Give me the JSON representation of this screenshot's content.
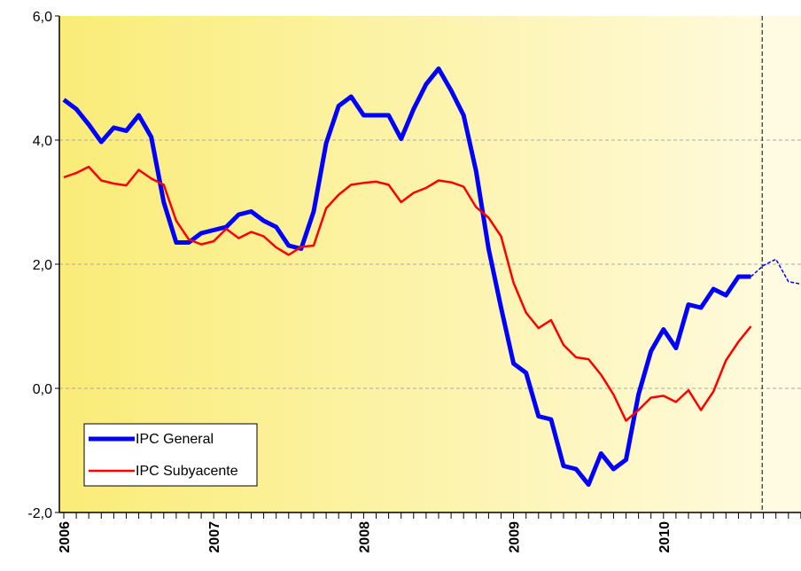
{
  "chart_data": {
    "type": "line",
    "categories": [
      "2006",
      null,
      null,
      null,
      null,
      null,
      null,
      null,
      null,
      null,
      null,
      null,
      "2007",
      null,
      null,
      null,
      null,
      null,
      null,
      null,
      null,
      null,
      null,
      null,
      "2008",
      null,
      null,
      null,
      null,
      null,
      null,
      null,
      null,
      null,
      null,
      null,
      "2009",
      null,
      null,
      null,
      null,
      null,
      null,
      null,
      null,
      null,
      null,
      null,
      "2010",
      null,
      null,
      null,
      null,
      null,
      null,
      null,
      null,
      null,
      null,
      null
    ],
    "series": [
      {
        "name": "IPC General",
        "color": "#0000ff",
        "width": 5,
        "values": [
          4.65,
          4.5,
          4.25,
          3.97,
          4.2,
          4.15,
          4.4,
          4.05,
          3.0,
          2.35,
          2.35,
          2.5,
          2.55,
          2.6,
          2.8,
          2.85,
          2.7,
          2.6,
          2.3,
          2.25,
          2.85,
          3.95,
          4.55,
          4.7,
          4.4,
          4.4,
          4.4,
          4.02,
          4.5,
          4.9,
          5.15,
          4.8,
          4.4,
          3.5,
          2.25,
          1.3,
          0.4,
          0.25,
          -0.45,
          -0.5,
          -1.25,
          -1.3,
          -1.55,
          -1.05,
          -1.3,
          -1.15,
          -0.1,
          0.6,
          0.95,
          0.65,
          1.35,
          1.3,
          1.6,
          1.5,
          1.8,
          1.8,
          null,
          null,
          null,
          null
        ]
      },
      {
        "name": "IPC Subyacente",
        "color": "#ff0000",
        "width": 2.5,
        "values": [
          3.4,
          3.47,
          3.57,
          3.35,
          3.3,
          3.27,
          3.52,
          3.38,
          3.28,
          2.7,
          2.4,
          2.32,
          2.37,
          2.57,
          2.42,
          2.52,
          2.45,
          2.27,
          2.15,
          2.28,
          2.3,
          2.9,
          3.12,
          3.28,
          3.31,
          3.33,
          3.28,
          3.0,
          3.15,
          3.23,
          3.35,
          3.32,
          3.25,
          2.92,
          2.75,
          2.45,
          1.7,
          1.22,
          0.97,
          1.1,
          0.7,
          0.5,
          0.47,
          0.22,
          -0.1,
          -0.52,
          -0.35,
          -0.15,
          -0.12,
          -0.22,
          -0.03,
          -0.35,
          -0.05,
          0.45,
          0.75,
          1.0,
          null,
          null,
          null,
          null
        ]
      },
      {
        "color": "#0000ff",
        "width": 1.5,
        "dashed": true,
        "values": [
          null,
          null,
          null,
          null,
          null,
          null,
          null,
          null,
          null,
          null,
          null,
          null,
          null,
          null,
          null,
          null,
          null,
          null,
          null,
          null,
          null,
          null,
          null,
          null,
          null,
          null,
          null,
          null,
          null,
          null,
          null,
          null,
          null,
          null,
          null,
          null,
          null,
          null,
          null,
          null,
          null,
          null,
          null,
          null,
          null,
          null,
          null,
          null,
          null,
          null,
          null,
          null,
          null,
          null,
          null,
          1.8,
          1.98,
          2.08,
          1.72,
          1.68
        ]
      }
    ],
    "ylim": [
      -2,
      6
    ],
    "yticks": [
      {
        "value": -2,
        "label": "-2,0"
      },
      {
        "value": 0,
        "label": "0,0"
      },
      {
        "value": 2,
        "label": "2,0"
      },
      {
        "value": 4,
        "label": "4,0"
      },
      {
        "value": 6,
        "label": "6,0"
      }
    ],
    "grid": true,
    "forecast_start": 55.9,
    "legend": "lower left"
  }
}
